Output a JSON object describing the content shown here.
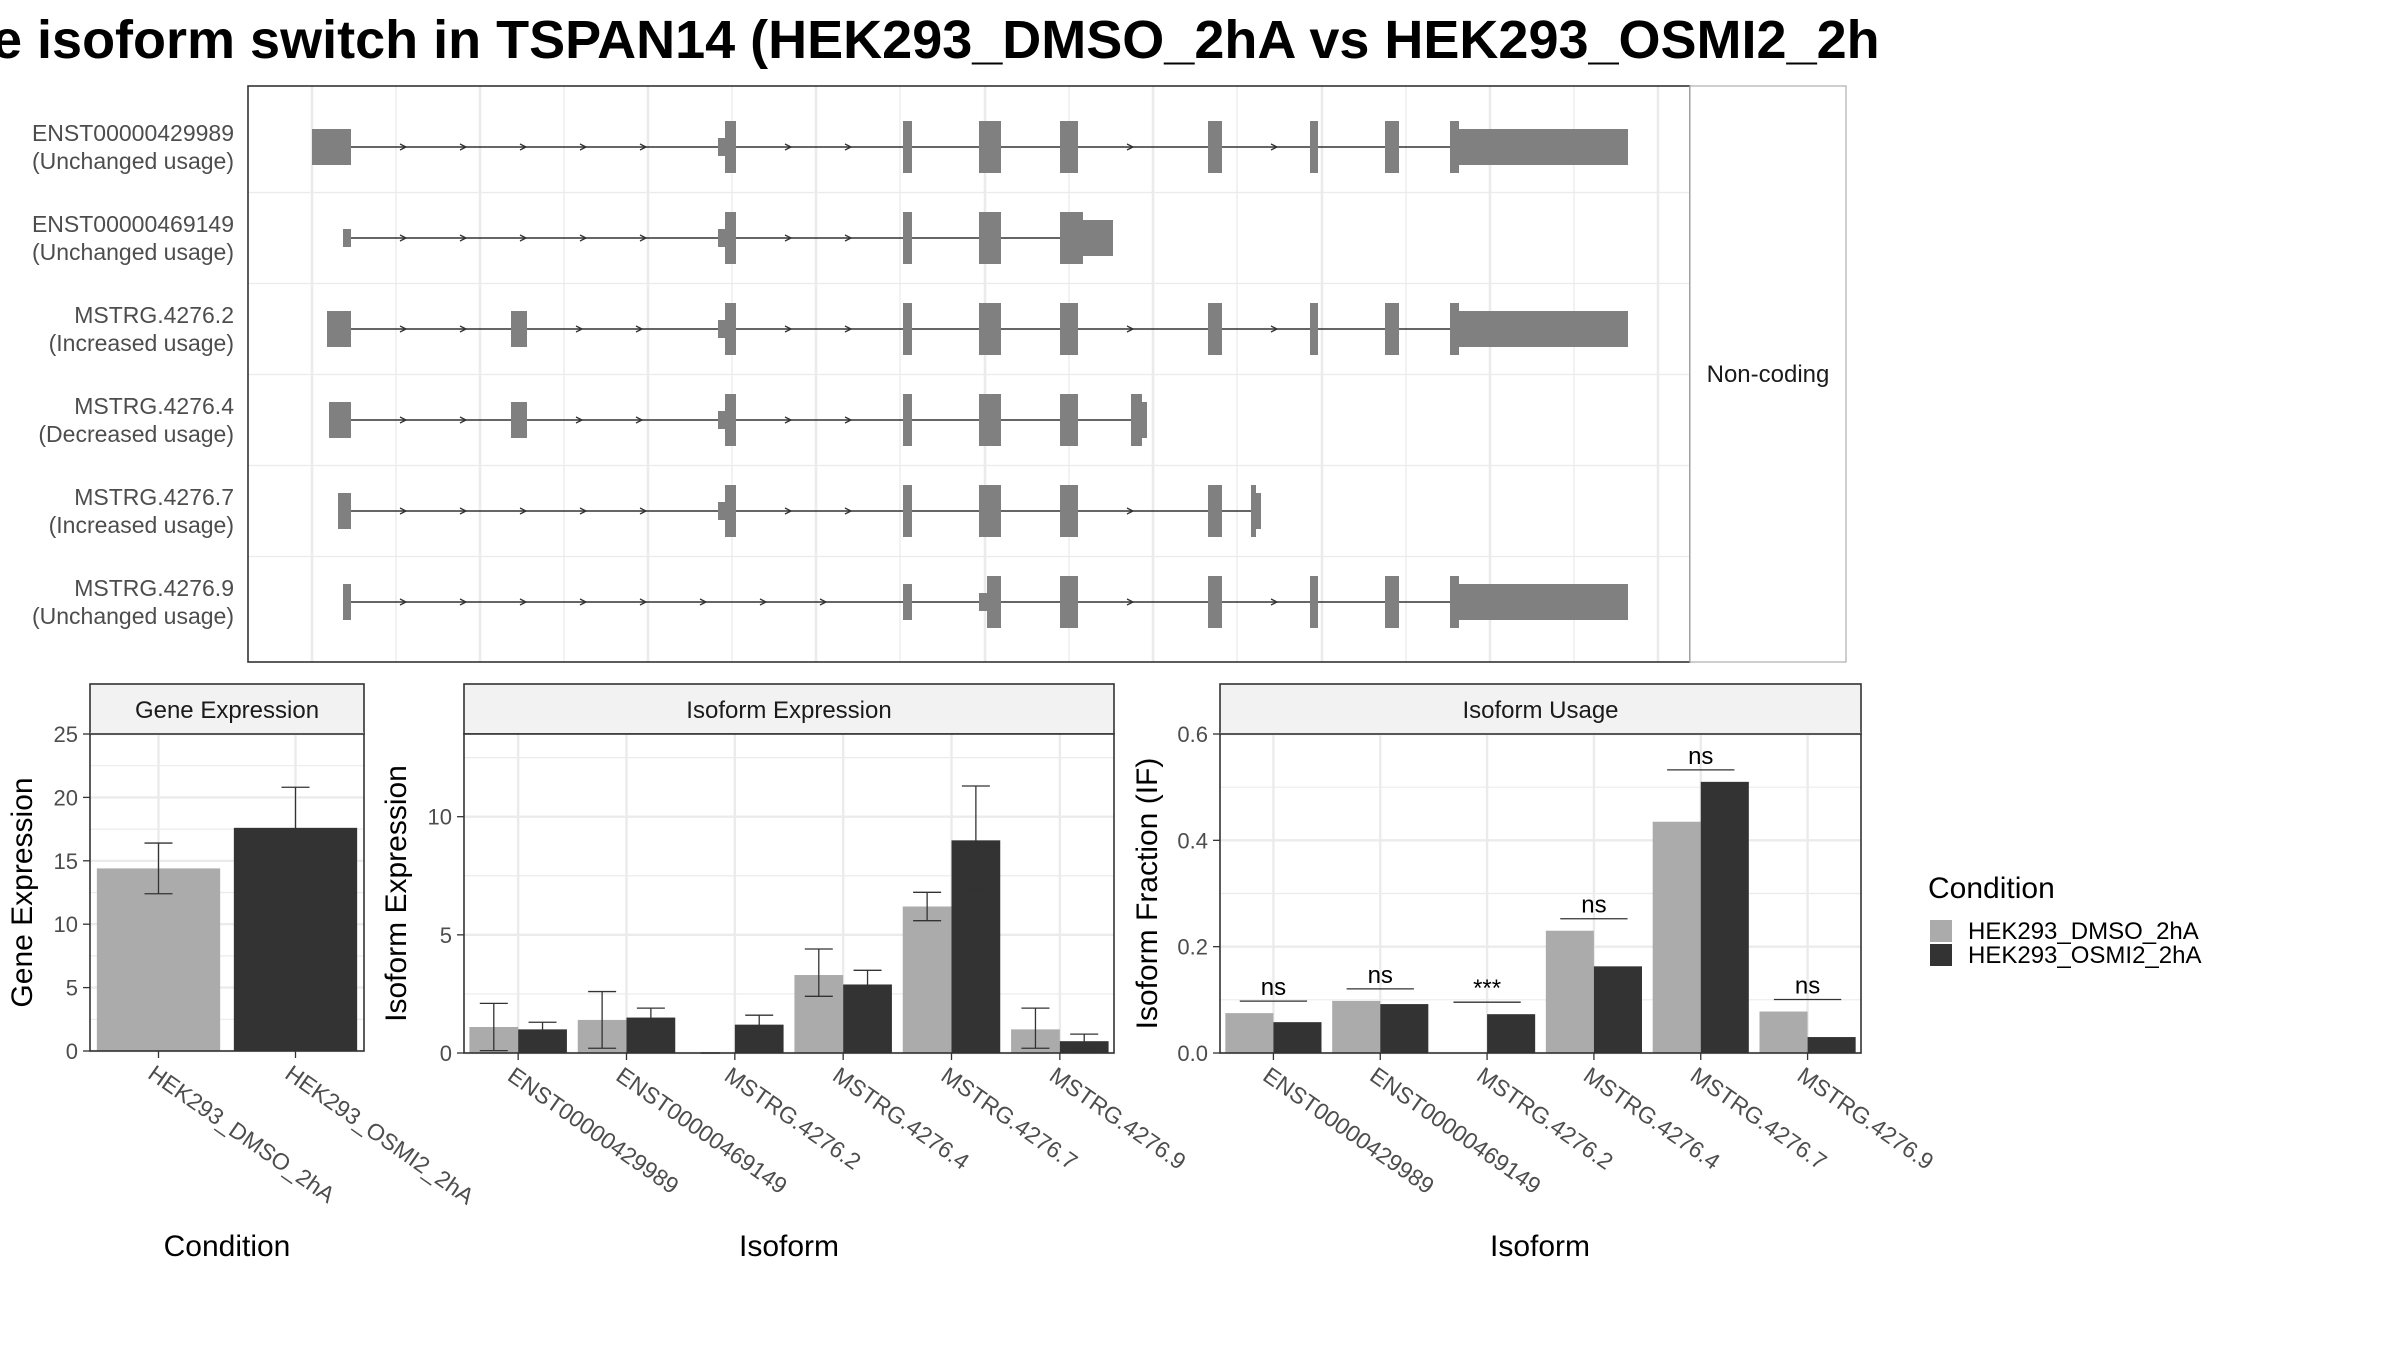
{
  "title": "e isoform switch in TSPAN14 (HEK293_DMSO_2hA vs HEK293_OSMI2_2h",
  "colors": {
    "dmso": "#ababab",
    "osmi": "#333333",
    "exon": "#808080",
    "grid": "#ebebeb",
    "strip": "#f2f2f2"
  },
  "structure": {
    "strip_label": "Non-coding",
    "transcripts": [
      {
        "name": "ENST00000429989",
        "usage": "(Unchanged usage)"
      },
      {
        "name": "ENST00000469149",
        "usage": "(Unchanged usage)"
      },
      {
        "name": "MSTRG.4276.2",
        "usage": "(Increased usage)"
      },
      {
        "name": "MSTRG.4276.4",
        "usage": "(Decreased usage)"
      },
      {
        "name": "MSTRG.4276.7",
        "usage": "(Increased usage)"
      },
      {
        "name": "MSTRG.4276.9",
        "usage": "(Unchanged usage)"
      }
    ]
  },
  "legend": {
    "title": "Condition",
    "items": [
      "HEK293_DMSO_2hA",
      "HEK293_OSMI2_2hA"
    ]
  },
  "chart_data": [
    {
      "type": "bar",
      "panel": "Gene Expression",
      "xlabel": "Condition",
      "ylabel": "Gene Expression",
      "ylim": [
        0,
        25
      ],
      "yticks": [
        0,
        5,
        10,
        15,
        20,
        25
      ],
      "categories": [
        "HEK293_DMSO_2hA",
        "HEK293_OSMI2_2hA"
      ],
      "values": [
        14.4,
        17.6
      ],
      "err_low": [
        12.4,
        14.4
      ],
      "err_high": [
        16.4,
        20.8
      ]
    },
    {
      "type": "bar",
      "panel": "Isoform Expression",
      "xlabel": "Isoform",
      "ylabel": "Isoform Expression",
      "ylim": [
        0,
        13.5
      ],
      "yticks": [
        0,
        5,
        10
      ],
      "categories": [
        "ENST00000429989",
        "ENST00000469149",
        "MSTRG.4276.2",
        "MSTRG.4276.4",
        "MSTRG.4276.7",
        "MSTRG.4276.9"
      ],
      "series": [
        {
          "name": "HEK293_DMSO_2hA",
          "values": [
            1.1,
            1.4,
            0.0,
            3.3,
            6.2,
            1.0
          ],
          "err_low": [
            0.1,
            0.2,
            0.0,
            2.4,
            5.6,
            0.2
          ],
          "err_high": [
            2.1,
            2.6,
            0.0,
            4.4,
            6.8,
            1.9
          ]
        },
        {
          "name": "HEK293_OSMI2_2hA",
          "values": [
            1.0,
            1.5,
            1.2,
            2.9,
            9.0,
            0.5
          ],
          "err_low": [
            0.7,
            1.2,
            0.9,
            2.3,
            6.9,
            0.2
          ],
          "err_high": [
            1.3,
            1.9,
            1.6,
            3.5,
            11.3,
            0.8
          ]
        }
      ]
    },
    {
      "type": "bar",
      "panel": "Isoform Usage",
      "xlabel": "Isoform",
      "ylabel": "Isoform Fraction (IF)",
      "ylim": [
        0,
        0.6
      ],
      "yticks": [
        0.0,
        0.2,
        0.4,
        0.6
      ],
      "categories": [
        "ENST00000429989",
        "ENST00000469149",
        "MSTRG.4276.2",
        "MSTRG.4276.4",
        "MSTRG.4276.7",
        "MSTRG.4276.9"
      ],
      "series": [
        {
          "name": "HEK293_DMSO_2hA",
          "values": [
            0.075,
            0.098,
            0.0,
            0.23,
            0.435,
            0.078
          ]
        },
        {
          "name": "HEK293_OSMI2_2hA",
          "values": [
            0.058,
            0.092,
            0.073,
            0.163,
            0.51,
            0.03
          ]
        }
      ],
      "significance": [
        "ns",
        "ns",
        "***",
        "ns",
        "ns",
        "ns"
      ]
    }
  ]
}
